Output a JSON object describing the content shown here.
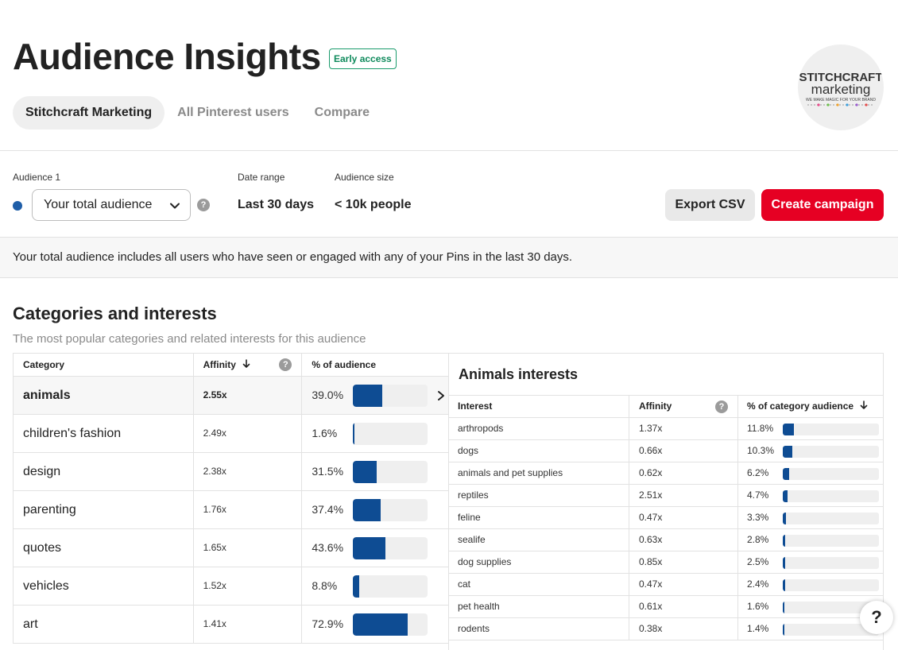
{
  "header": {
    "title": "Audience Insights",
    "badge": "Early access",
    "tabs": [
      {
        "label": "Stitchcraft Marketing",
        "active": true
      },
      {
        "label": "All Pinterest users",
        "active": false
      },
      {
        "label": "Compare",
        "active": false
      }
    ],
    "logo": {
      "line1": "STITCHCRAFT",
      "line2": "marketing",
      "tagline": "WE MAKE MAGIC FOR YOUR BRAND"
    }
  },
  "controls": {
    "audience_label": "Audience 1",
    "audience_value": "Your total audience",
    "date_label": "Date range",
    "date_value": "Last 30 days",
    "size_label": "Audience size",
    "size_value": "< 10k people",
    "export_label": "Export CSV",
    "campaign_label": "Create campaign",
    "help_glyph": "?"
  },
  "info_text": "Your total audience includes all users who have seen or engaged with any of your Pins in the last 30 days.",
  "section": {
    "title": "Categories and interests",
    "subtitle": "The most popular categories and related interests for this audience"
  },
  "categories": {
    "headers": {
      "category": "Category",
      "affinity": "Affinity",
      "audience": "% of audience"
    },
    "rows": [
      {
        "name": "animals",
        "affinity": "2.55x",
        "pct": "39.0%",
        "value": 39.0,
        "selected": true
      },
      {
        "name": "children's fashion",
        "affinity": "2.49x",
        "pct": "1.6%",
        "value": 1.6
      },
      {
        "name": "design",
        "affinity": "2.38x",
        "pct": "31.5%",
        "value": 31.5
      },
      {
        "name": "parenting",
        "affinity": "1.76x",
        "pct": "37.4%",
        "value": 37.4
      },
      {
        "name": "quotes",
        "affinity": "1.65x",
        "pct": "43.6%",
        "value": 43.6
      },
      {
        "name": "vehicles",
        "affinity": "1.52x",
        "pct": "8.8%",
        "value": 8.8
      },
      {
        "name": "art",
        "affinity": "1.41x",
        "pct": "72.9%",
        "value": 72.9
      }
    ]
  },
  "interests": {
    "title": "Animals interests",
    "headers": {
      "interest": "Interest",
      "affinity": "Affinity",
      "audience": "% of category audience"
    },
    "rows": [
      {
        "name": "arthropods",
        "affinity": "1.37x",
        "pct": "11.8%",
        "value": 11.8
      },
      {
        "name": "dogs",
        "affinity": "0.66x",
        "pct": "10.3%",
        "value": 10.3
      },
      {
        "name": "animals and pet supplies",
        "affinity": "0.62x",
        "pct": "6.2%",
        "value": 6.2
      },
      {
        "name": "reptiles",
        "affinity": "2.51x",
        "pct": "4.7%",
        "value": 4.7
      },
      {
        "name": "feline",
        "affinity": "0.47x",
        "pct": "3.3%",
        "value": 3.3
      },
      {
        "name": "sealife",
        "affinity": "0.63x",
        "pct": "2.8%",
        "value": 2.8
      },
      {
        "name": "dog supplies",
        "affinity": "0.85x",
        "pct": "2.5%",
        "value": 2.5
      },
      {
        "name": "cat",
        "affinity": "0.47x",
        "pct": "2.4%",
        "value": 2.4
      },
      {
        "name": "pet health",
        "affinity": "0.61x",
        "pct": "1.6%",
        "value": 1.6
      },
      {
        "name": "rodents",
        "affinity": "0.38x",
        "pct": "1.4%",
        "value": 1.4
      }
    ]
  },
  "help_fab": "?",
  "colors": {
    "accent": "#e60023",
    "bar": "#0e4c93",
    "audience_dot": "#1f5ea8",
    "badge": "#0f8a5c"
  }
}
